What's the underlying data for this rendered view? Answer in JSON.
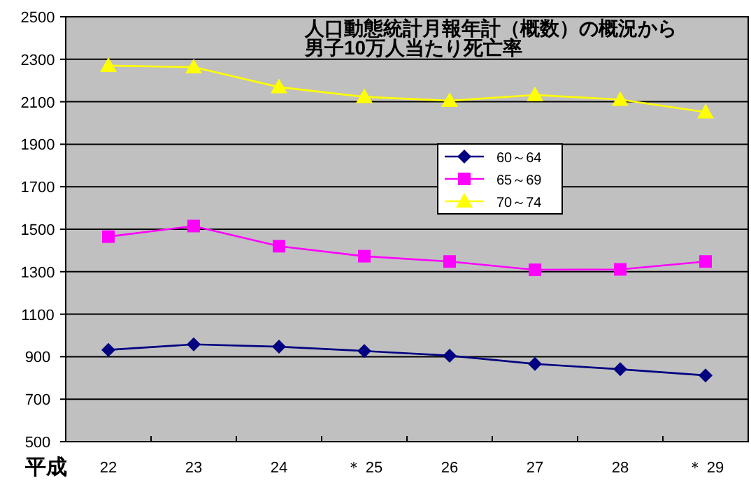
{
  "chart_data": {
    "type": "line",
    "title": "人口動態統計月報年計（概数）の概況から",
    "subtitle": "男子10万人当たり死亡率",
    "xlabel": "平成",
    "categories": [
      "22",
      "23",
      "24",
      "＊ 25",
      "26",
      "27",
      "28",
      "＊ 29"
    ],
    "series": [
      {
        "name": "60～64",
        "color": "#000080",
        "marker": "diamond",
        "values": [
          932,
          958,
          947,
          927,
          905,
          866,
          841,
          812
        ]
      },
      {
        "name": "65～69",
        "color": "#ff00ff",
        "marker": "square",
        "values": [
          1465,
          1515,
          1420,
          1373,
          1348,
          1309,
          1311,
          1348
        ]
      },
      {
        "name": "70～74",
        "color": "#ffff00",
        "marker": "triangle",
        "values": [
          2270,
          2263,
          2169,
          2123,
          2105,
          2132,
          2110,
          2051
        ]
      }
    ],
    "ylim": [
      500,
      2500
    ],
    "yticks": [
      500,
      700,
      900,
      1100,
      1300,
      1500,
      1700,
      1900,
      2100,
      2300,
      2500
    ],
    "grid": "y",
    "legend": "right",
    "line_style": "solid"
  }
}
